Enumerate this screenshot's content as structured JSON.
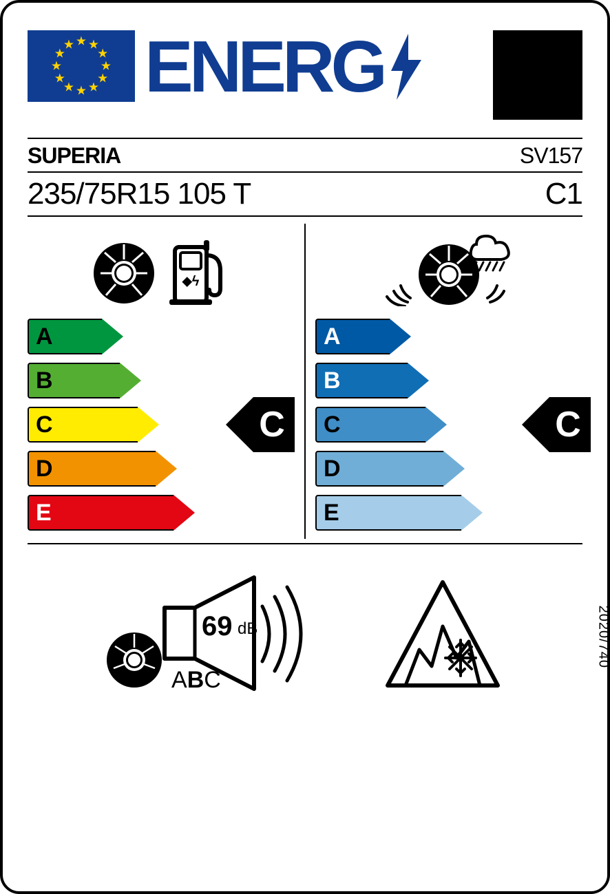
{
  "header": {
    "title": "ENERG",
    "eu_flag_bg": "#103d91",
    "eu_star_color": "#ffd200",
    "text_color": "#103d91"
  },
  "supplier": "SUPERIA",
  "article": "SV157",
  "tyre_size": "235/75R15 105 T",
  "tyre_class": "C1",
  "fuel": {
    "rating": "C",
    "classes": [
      "A",
      "B",
      "C",
      "D",
      "E"
    ],
    "colors": [
      "#009640",
      "#54ae32",
      "#ffec00",
      "#f39200",
      "#e30613"
    ],
    "widths": [
      108,
      134,
      160,
      186,
      212
    ],
    "text_colors": [
      "#000",
      "#000",
      "#000",
      "#000",
      "#fff"
    ]
  },
  "wet": {
    "rating": "C",
    "classes": [
      "A",
      "B",
      "C",
      "D",
      "E"
    ],
    "colors": [
      "#0059a5",
      "#106eb5",
      "#3f8ec7",
      "#70aed7",
      "#a5cde9"
    ],
    "widths": [
      108,
      134,
      160,
      186,
      212
    ],
    "text_colors": [
      "#fff",
      "#fff",
      "#000",
      "#000",
      "#000"
    ]
  },
  "noise": {
    "db_value": "69",
    "db_unit": "dB",
    "classes": [
      "A",
      "B",
      "C"
    ],
    "rating": "B"
  },
  "snow_grip": true,
  "regulation": "2020/740",
  "style": {
    "label_width": 886,
    "label_height": 1299,
    "border_radius": 28,
    "arrow_height": 52,
    "arrow_gap": 12,
    "scale_font_size": 34,
    "rating_badge_font_size": 52,
    "rating_badge_color": "#000000"
  }
}
